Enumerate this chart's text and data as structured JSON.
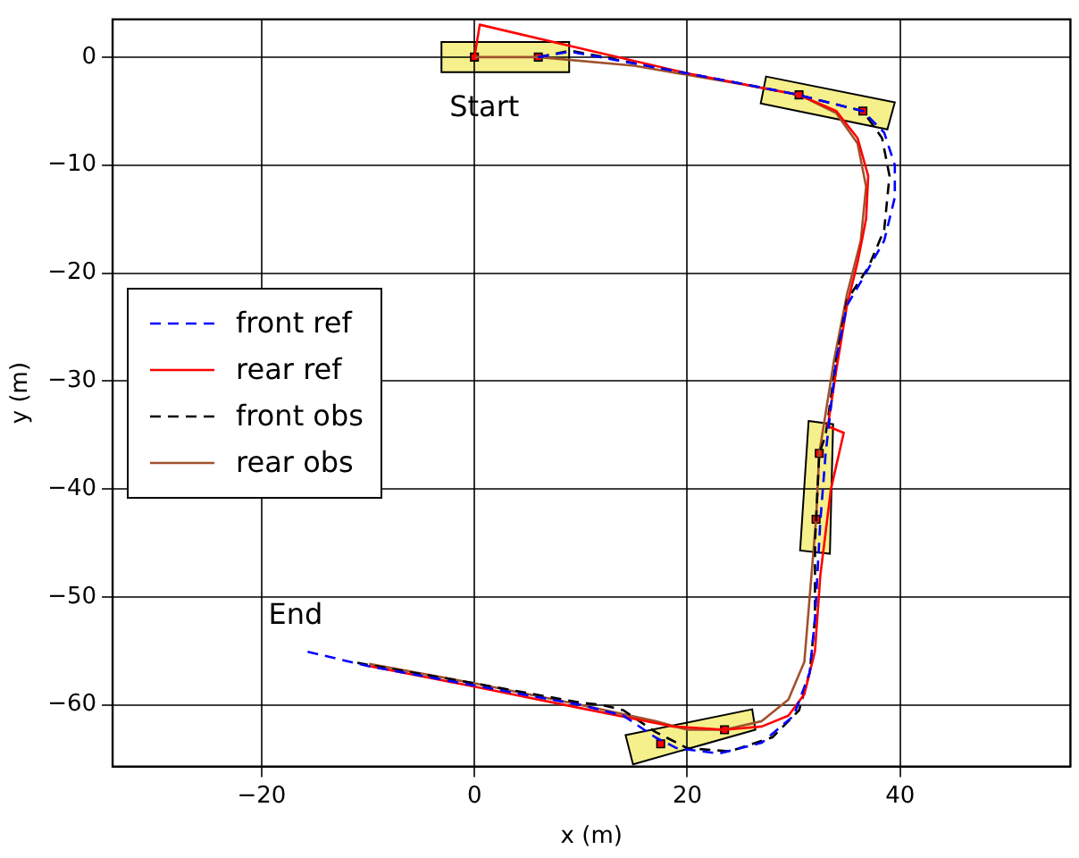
{
  "chart_data": {
    "type": "line",
    "xlabel": "x (m)",
    "ylabel": "y (m)",
    "xlim": [
      -34,
      56
    ],
    "ylim": [
      -65.7,
      3.5
    ],
    "xticks": [
      -20,
      0,
      20,
      40
    ],
    "yticks": [
      -60,
      -50,
      -40,
      -30,
      -20,
      -10,
      0
    ],
    "grid": true,
    "legend": "left",
    "marker": "none",
    "annotations": [
      "Start",
      "End"
    ],
    "series": [
      {
        "name": "front ref",
        "color": "#0000ff",
        "line_style": "dashed",
        "x": [
          6,
          9,
          20,
          30,
          36.5,
          38.5,
          39.5,
          39.5,
          38.5,
          36.5,
          35,
          34,
          33,
          32.5,
          32,
          31.5,
          30,
          27,
          23,
          19,
          17,
          14,
          10,
          0,
          -10,
          -16
        ],
        "values": [
          0,
          0.5,
          -1.5,
          -3.4,
          -5,
          -7,
          -10,
          -13,
          -17,
          -20.5,
          -23,
          -28,
          -36.7,
          -43,
          -52,
          -57,
          -61,
          -63.5,
          -64.5,
          -64,
          -63,
          -61,
          -60,
          -58.2,
          -56.4,
          -55
        ]
      },
      {
        "name": "rear ref",
        "color": "#ff0000",
        "line_style": "solid",
        "x": [
          0,
          0.5,
          10,
          20,
          30.5,
          34,
          36,
          37,
          36.8,
          36,
          35,
          34,
          33.2,
          34.7,
          33.5,
          32.5,
          32,
          31,
          29.5,
          27,
          23.5,
          18.7,
          10,
          0,
          -9.9
        ],
        "values": [
          0,
          3,
          0.8,
          -1.5,
          -3.5,
          -5,
          -7.5,
          -11,
          -15,
          -19,
          -23,
          -29,
          -34.2,
          -34.8,
          -40,
          -48,
          -55,
          -59,
          -61,
          -62,
          -62.3,
          -62,
          -60.3,
          -58.3,
          -56.4
        ]
      },
      {
        "name": "front obs",
        "color": "#000000",
        "line_style": "dashed",
        "x": [
          6,
          9,
          20,
          30,
          36.5,
          38.3,
          39,
          38.5,
          37,
          35,
          34,
          33,
          32.4,
          32,
          32,
          31.5,
          30.5,
          28,
          24,
          20,
          17,
          14,
          12,
          10,
          0,
          -11
        ],
        "values": [
          0,
          0.6,
          -1.5,
          -3.4,
          -5,
          -7.5,
          -11,
          -16,
          -19.5,
          -22.5,
          -28,
          -35,
          -36.7,
          -45,
          -52,
          -57,
          -60.5,
          -63,
          -64.3,
          -64,
          -62.5,
          -60.5,
          -60,
          -59.8,
          -58,
          -56.1
        ]
      },
      {
        "name": "rear obs",
        "color": "#a0522d",
        "line_style": "solid",
        "x": [
          0,
          6,
          15,
          25,
          30.5,
          34,
          36,
          36.8,
          36.3,
          35,
          33.8,
          32.4,
          32.1,
          31.5,
          31,
          29.5,
          27,
          23.5,
          20,
          17,
          10,
          0,
          -9.9
        ],
        "values": [
          0,
          0,
          -0.8,
          -2.5,
          -3.5,
          -5.2,
          -8,
          -12,
          -17,
          -22,
          -28,
          -36.7,
          -42.8,
          -50,
          -56,
          -59.5,
          -61.5,
          -62.3,
          -62.3,
          -61.5,
          -60,
          -58,
          -56.2
        ]
      },
      {
        "type": "scatter",
        "marker": "square",
        "color": "#ff0000",
        "x": [
          0,
          6,
          30.5,
          36.5,
          32.4,
          32.1,
          17.5,
          23.5
        ],
        "values": [
          0,
          0,
          -3.5,
          -5,
          -36.7,
          -42.8,
          -63.6,
          -62.3
        ]
      }
    ]
  }
}
